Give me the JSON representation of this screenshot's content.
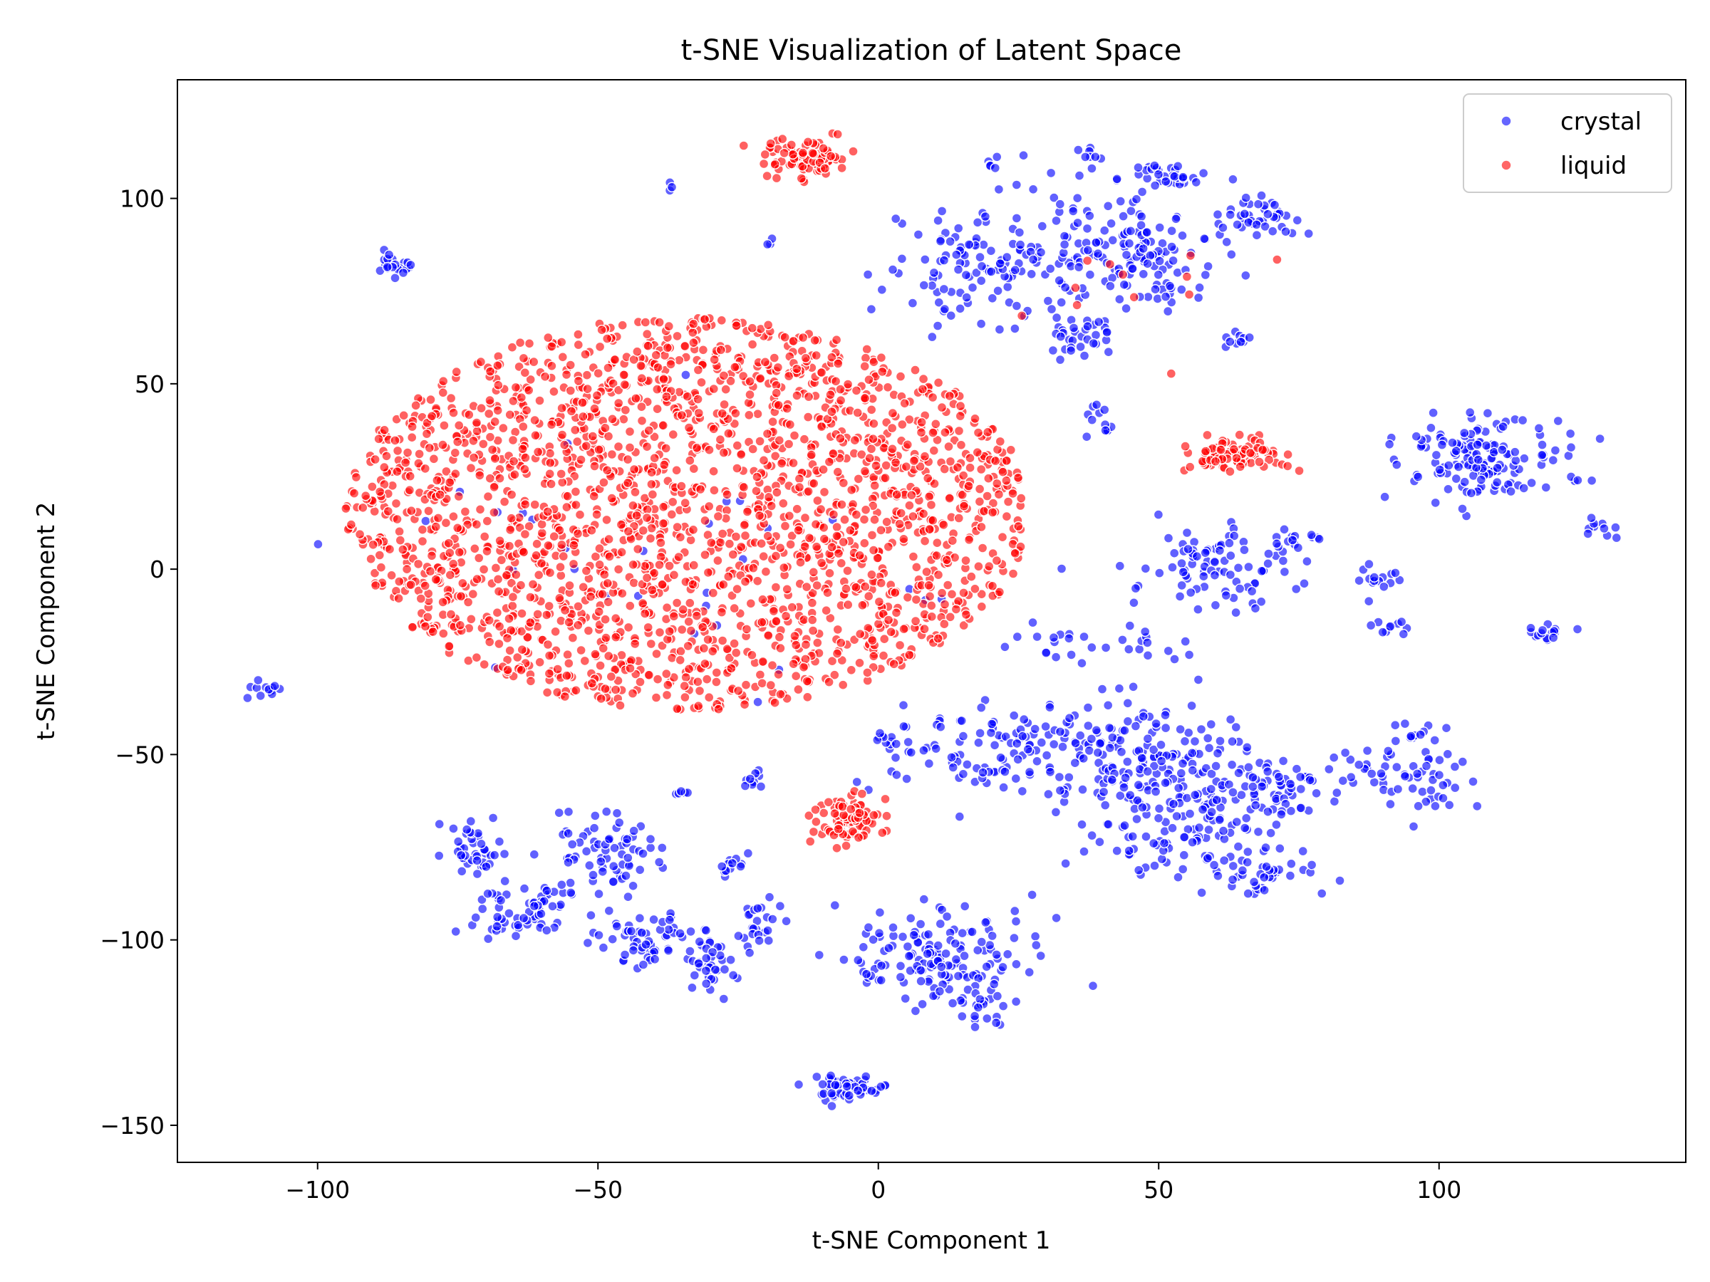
{
  "chart_data": {
    "type": "scatter",
    "title": "t-SNE Visualization of Latent Space",
    "xlabel": "t-SNE Component 1",
    "ylabel": "t-SNE Component 2",
    "xlim": [
      -125,
      144
    ],
    "ylim": [
      -160,
      132
    ],
    "xticks": [
      -100,
      -50,
      0,
      50,
      100
    ],
    "yticks": [
      -150,
      -100,
      -50,
      0,
      50,
      100
    ],
    "xtick_labels": [
      "−100",
      "−50",
      "0",
      "50",
      "100"
    ],
    "ytick_labels": [
      "−150",
      "−100",
      "−50",
      "0",
      "50",
      "100"
    ],
    "grid": false,
    "legend_position": "top-right",
    "series": [
      {
        "name": "crystal",
        "color": "#0000ff",
        "clusters": [
          {
            "cx": -86,
            "cy": 82,
            "rx": 3,
            "ry": 3,
            "n": 20
          },
          {
            "cx": -37,
            "cy": 103,
            "rx": 1,
            "ry": 1,
            "n": 3
          },
          {
            "cx": -19,
            "cy": 88,
            "rx": 1,
            "ry": 1,
            "n": 3
          },
          {
            "cx": -110,
            "cy": -33,
            "rx": 3,
            "ry": 2,
            "n": 14
          },
          {
            "cx": -100,
            "cy": 7,
            "rx": 0.5,
            "ry": 0.5,
            "n": 1
          },
          {
            "cx": 20,
            "cy": 82,
            "rx": 14,
            "ry": 13,
            "n": 120
          },
          {
            "cx": 45,
            "cy": 85,
            "rx": 14,
            "ry": 16,
            "n": 160
          },
          {
            "cx": 52,
            "cy": 106,
            "rx": 5,
            "ry": 3,
            "n": 30
          },
          {
            "cx": 68,
            "cy": 95,
            "rx": 7,
            "ry": 5,
            "n": 40
          },
          {
            "cx": 35,
            "cy": 62,
            "rx": 6,
            "ry": 6,
            "n": 30
          },
          {
            "cx": 40,
            "cy": 40,
            "rx": 2,
            "ry": 4,
            "n": 12
          },
          {
            "cx": 64,
            "cy": 62,
            "rx": 2,
            "ry": 2,
            "n": 10
          },
          {
            "cx": 38,
            "cy": 112,
            "rx": 2,
            "ry": 2,
            "n": 8
          },
          {
            "cx": 20,
            "cy": 109,
            "rx": 1,
            "ry": 1,
            "n": 4
          },
          {
            "cx": 108,
            "cy": 30,
            "rx": 12,
            "ry": 10,
            "n": 150
          },
          {
            "cx": 129,
            "cy": 11,
            "rx": 3,
            "ry": 3,
            "n": 10
          },
          {
            "cx": 62,
            "cy": 0,
            "rx": 12,
            "ry": 8,
            "n": 90
          },
          {
            "cx": 75,
            "cy": 8,
            "rx": 3,
            "ry": 2,
            "n": 12
          },
          {
            "cx": 88,
            "cy": -3,
            "rx": 6,
            "ry": 4,
            "n": 15
          },
          {
            "cx": 90,
            "cy": -15,
            "rx": 3,
            "ry": 2,
            "n": 10
          },
          {
            "cx": 120,
            "cy": -17,
            "rx": 5,
            "ry": 2,
            "n": 15
          },
          {
            "cx": 40,
            "cy": -20,
            "rx": 16,
            "ry": 6,
            "n": 30
          },
          {
            "cx": 35,
            "cy": -50,
            "rx": 28,
            "ry": 12,
            "n": 260
          },
          {
            "cx": 55,
            "cy": -68,
            "rx": 16,
            "ry": 14,
            "n": 140
          },
          {
            "cx": 68,
            "cy": -82,
            "rx": 10,
            "ry": 6,
            "n": 40
          },
          {
            "cx": 72,
            "cy": -60,
            "rx": 6,
            "ry": 8,
            "n": 45
          },
          {
            "cx": 88,
            "cy": -55,
            "rx": 6,
            "ry": 6,
            "n": 25
          },
          {
            "cx": 98,
            "cy": -58,
            "rx": 6,
            "ry": 9,
            "n": 35
          },
          {
            "cx": 95,
            "cy": -44,
            "rx": 4,
            "ry": 3,
            "n": 12
          },
          {
            "cx": 10,
            "cy": -105,
            "rx": 14,
            "ry": 12,
            "n": 150
          },
          {
            "cx": 18,
            "cy": -118,
            "rx": 4,
            "ry": 5,
            "n": 20
          },
          {
            "cx": -6,
            "cy": -140,
            "rx": 5,
            "ry": 3,
            "n": 50
          },
          {
            "cx": -72,
            "cy": -75,
            "rx": 5,
            "ry": 6,
            "n": 40
          },
          {
            "cx": -62,
            "cy": -92,
            "rx": 10,
            "ry": 7,
            "n": 70
          },
          {
            "cx": -48,
            "cy": -76,
            "rx": 8,
            "ry": 8,
            "n": 70
          },
          {
            "cx": -40,
            "cy": -100,
            "rx": 10,
            "ry": 6,
            "n": 60
          },
          {
            "cx": -30,
            "cy": -108,
            "rx": 4,
            "ry": 6,
            "n": 30
          },
          {
            "cx": -22,
            "cy": -95,
            "rx": 4,
            "ry": 6,
            "n": 25
          },
          {
            "cx": -25,
            "cy": -80,
            "rx": 3,
            "ry": 3,
            "n": 12
          },
          {
            "cx": -22,
            "cy": -57,
            "rx": 2,
            "ry": 2,
            "n": 10
          },
          {
            "cx": -35,
            "cy": -60,
            "rx": 2,
            "ry": 1,
            "n": 5
          },
          {
            "cx": 2,
            "cy": -46,
            "rx": 2,
            "ry": 2,
            "n": 10
          },
          {
            "cx": -35,
            "cy": 5,
            "rx": 55,
            "ry": 30,
            "n": 30
          }
        ]
      },
      {
        "name": "liquid",
        "color": "#ff0000",
        "clusters": [
          {
            "cx": -34,
            "cy": 15,
            "rx": 61,
            "ry": 53,
            "n": 2200,
            "clip_y": [
              -42,
              72
            ]
          },
          {
            "cx": -13,
            "cy": 111,
            "rx": 6,
            "ry": 5,
            "n": 90
          },
          {
            "cx": 64,
            "cy": 31,
            "rx": 7,
            "ry": 4,
            "n": 80
          },
          {
            "cx": -5,
            "cy": -68,
            "rx": 5,
            "ry": 5,
            "n": 80
          },
          {
            "cx": 50,
            "cy": 80,
            "rx": 20,
            "ry": 20,
            "n": 12
          }
        ]
      }
    ]
  }
}
